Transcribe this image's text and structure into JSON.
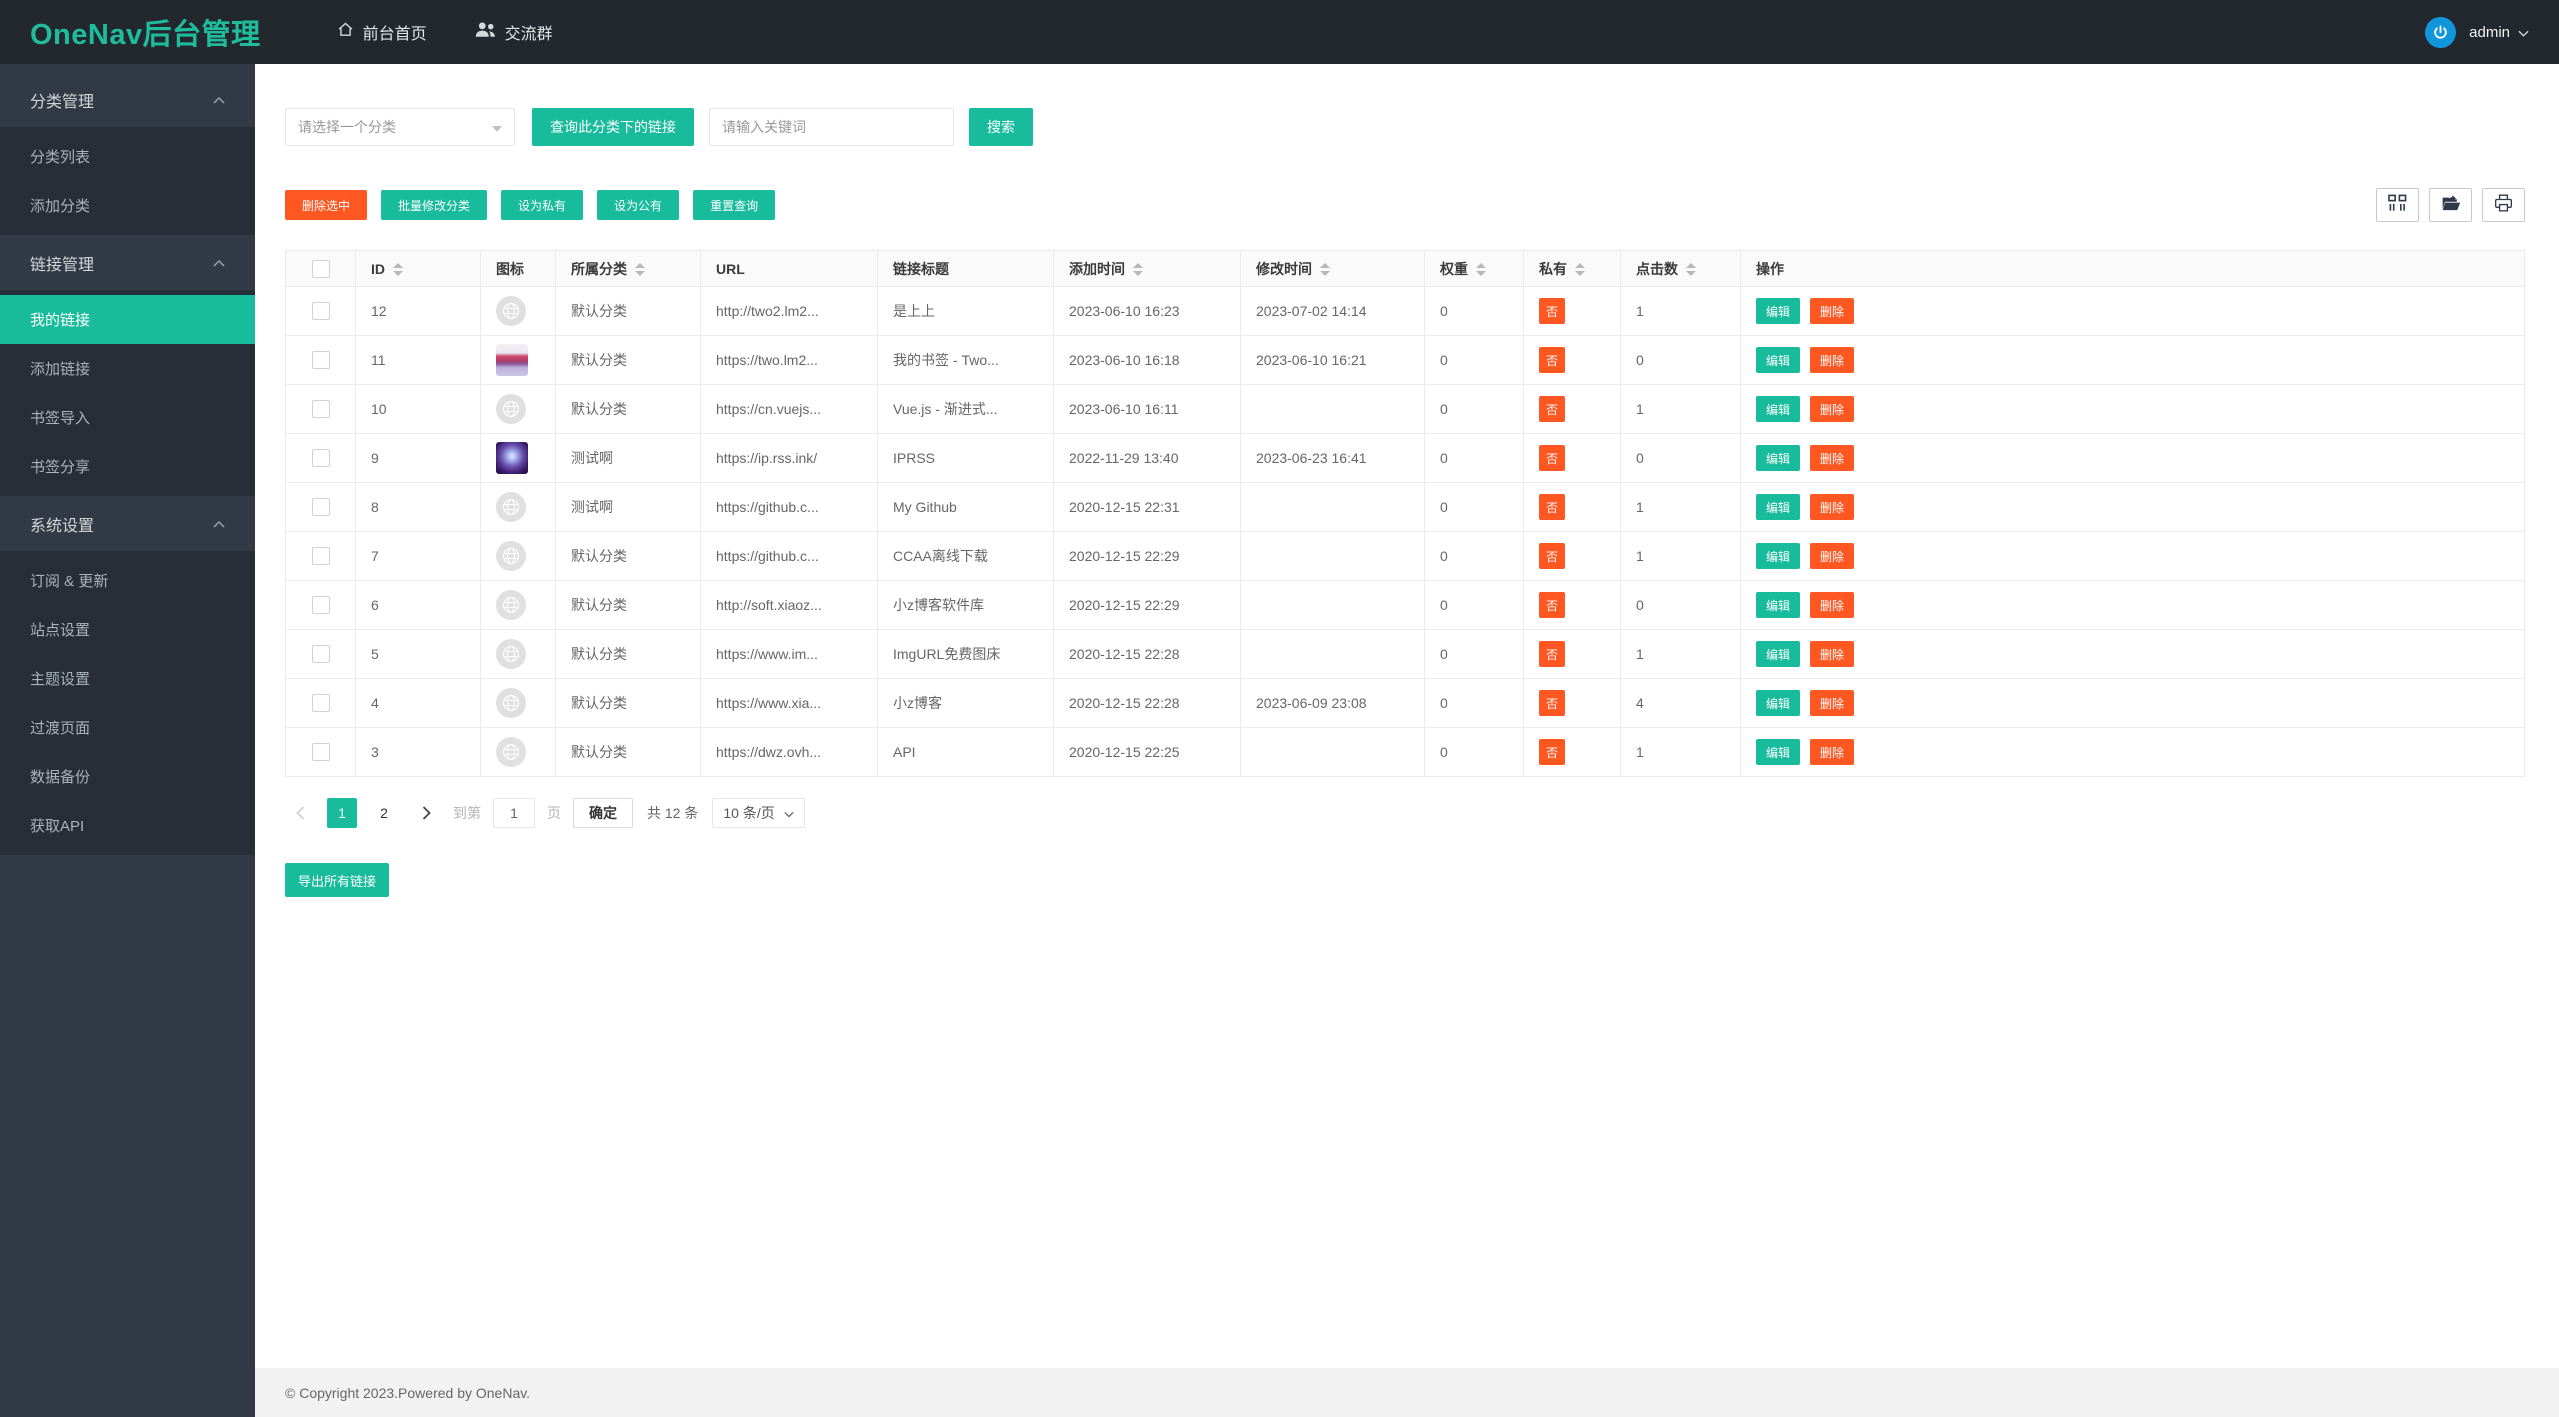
{
  "navbar": {
    "logo": "OneNav后台管理",
    "items": [
      {
        "label": "前台首页",
        "icon": "home-icon"
      },
      {
        "label": "交流群",
        "icon": "users-icon"
      }
    ],
    "user": {
      "name": "admin",
      "avatar_icon": "power-icon"
    }
  },
  "sidebar": {
    "sections": [
      {
        "title": "分类管理",
        "items": [
          "分类列表",
          "添加分类"
        ],
        "active": ""
      },
      {
        "title": "链接管理",
        "items": [
          "我的链接",
          "添加链接",
          "书签导入",
          "书签分享"
        ],
        "active": "我的链接"
      },
      {
        "title": "系统设置",
        "items": [
          "订阅 & 更新",
          "站点设置",
          "主题设置",
          "过渡页面",
          "数据备份",
          "获取API"
        ],
        "active": ""
      }
    ]
  },
  "filters": {
    "category_placeholder": "请选择一个分类",
    "query_button": "查询此分类下的链接",
    "keyword_placeholder": "请输入关键词",
    "search_button": "搜索"
  },
  "toolbar": {
    "buttons": [
      {
        "label": "删除选中",
        "style": "danger"
      },
      {
        "label": "批量修改分类",
        "style": "primary"
      },
      {
        "label": "设为私有",
        "style": "primary"
      },
      {
        "label": "设为公有",
        "style": "primary"
      },
      {
        "label": "重置查询",
        "style": "primary"
      }
    ],
    "icon_buttons": [
      "columns-icon",
      "export-icon",
      "print-icon"
    ]
  },
  "table": {
    "columns": [
      {
        "label": "ID",
        "sortable": true
      },
      {
        "label": "图标",
        "sortable": false
      },
      {
        "label": "所属分类",
        "sortable": true
      },
      {
        "label": "URL",
        "sortable": false
      },
      {
        "label": "链接标题",
        "sortable": false
      },
      {
        "label": "添加时间",
        "sortable": true
      },
      {
        "label": "修改时间",
        "sortable": true
      },
      {
        "label": "权重",
        "sortable": true
      },
      {
        "label": "私有",
        "sortable": true
      },
      {
        "label": "点击数",
        "sortable": true
      },
      {
        "label": "操作",
        "sortable": false
      }
    ],
    "action_labels": {
      "edit": "编辑",
      "delete": "删除"
    },
    "rows": [
      {
        "id": "12",
        "icon": "globe",
        "category": "默认分类",
        "url": "http://two2.lm2...",
        "title": "是上上",
        "added": "2023-06-10 16:23",
        "modified": "2023-07-02 14:14",
        "weight": "0",
        "private": "否",
        "clicks": "1"
      },
      {
        "id": "11",
        "icon": "favicon-pink",
        "category": "默认分类",
        "url": "https://two.lm2...",
        "title": "我的书签 - Two...",
        "added": "2023-06-10 16:18",
        "modified": "2023-06-10 16:21",
        "weight": "0",
        "private": "否",
        "clicks": "0"
      },
      {
        "id": "10",
        "icon": "globe",
        "category": "默认分类",
        "url": "https://cn.vuejs...",
        "title": "Vue.js - 渐进式...",
        "added": "2023-06-10 16:11",
        "modified": "",
        "weight": "0",
        "private": "否",
        "clicks": "1"
      },
      {
        "id": "9",
        "icon": "favicon-galaxy",
        "category": "测试啊",
        "url": "https://ip.rss.ink/",
        "title": "IPRSS",
        "added": "2022-11-29 13:40",
        "modified": "2023-06-23 16:41",
        "weight": "0",
        "private": "否",
        "clicks": "0"
      },
      {
        "id": "8",
        "icon": "globe",
        "category": "测试啊",
        "url": "https://github.c...",
        "title": "My Github",
        "added": "2020-12-15 22:31",
        "modified": "",
        "weight": "0",
        "private": "否",
        "clicks": "1"
      },
      {
        "id": "7",
        "icon": "globe",
        "category": "默认分类",
        "url": "https://github.c...",
        "title": "CCAA离线下载",
        "added": "2020-12-15 22:29",
        "modified": "",
        "weight": "0",
        "private": "否",
        "clicks": "1"
      },
      {
        "id": "6",
        "icon": "globe",
        "category": "默认分类",
        "url": "http://soft.xiaoz...",
        "title": "小z博客软件库",
        "added": "2020-12-15 22:29",
        "modified": "",
        "weight": "0",
        "private": "否",
        "clicks": "0"
      },
      {
        "id": "5",
        "icon": "globe",
        "category": "默认分类",
        "url": "https://www.im...",
        "title": "ImgURL免费图床",
        "added": "2020-12-15 22:28",
        "modified": "",
        "weight": "0",
        "private": "否",
        "clicks": "1"
      },
      {
        "id": "4",
        "icon": "globe",
        "category": "默认分类",
        "url": "https://www.xia...",
        "title": "小z博客",
        "added": "2020-12-15 22:28",
        "modified": "2023-06-09 23:08",
        "weight": "0",
        "private": "否",
        "clicks": "4"
      },
      {
        "id": "3",
        "icon": "globe",
        "category": "默认分类",
        "url": "https://dwz.ovh...",
        "title": "API",
        "added": "2020-12-15 22:25",
        "modified": "",
        "weight": "0",
        "private": "否",
        "clicks": "1"
      }
    ]
  },
  "pagination": {
    "pages": [
      "1",
      "2"
    ],
    "active_page": "1",
    "goto_prefix": "到第",
    "goto_value": "1",
    "goto_suffix": "页",
    "confirm_button": "确定",
    "total_text": "共 12 条",
    "page_size_option": "10 条/页"
  },
  "export_button": "导出所有链接",
  "footer": {
    "copyright": "© Copyright 2023.Powered by OneNav."
  },
  "colors": {
    "accent": "#18bc9c",
    "danger": "#ff5722",
    "navbar_bg": "#23272e",
    "sidebar_bg": "#323a45",
    "sidebar_submenu_bg": "#272e37",
    "avatar_blue": "#1296db",
    "private_badge": "#ff5722"
  }
}
